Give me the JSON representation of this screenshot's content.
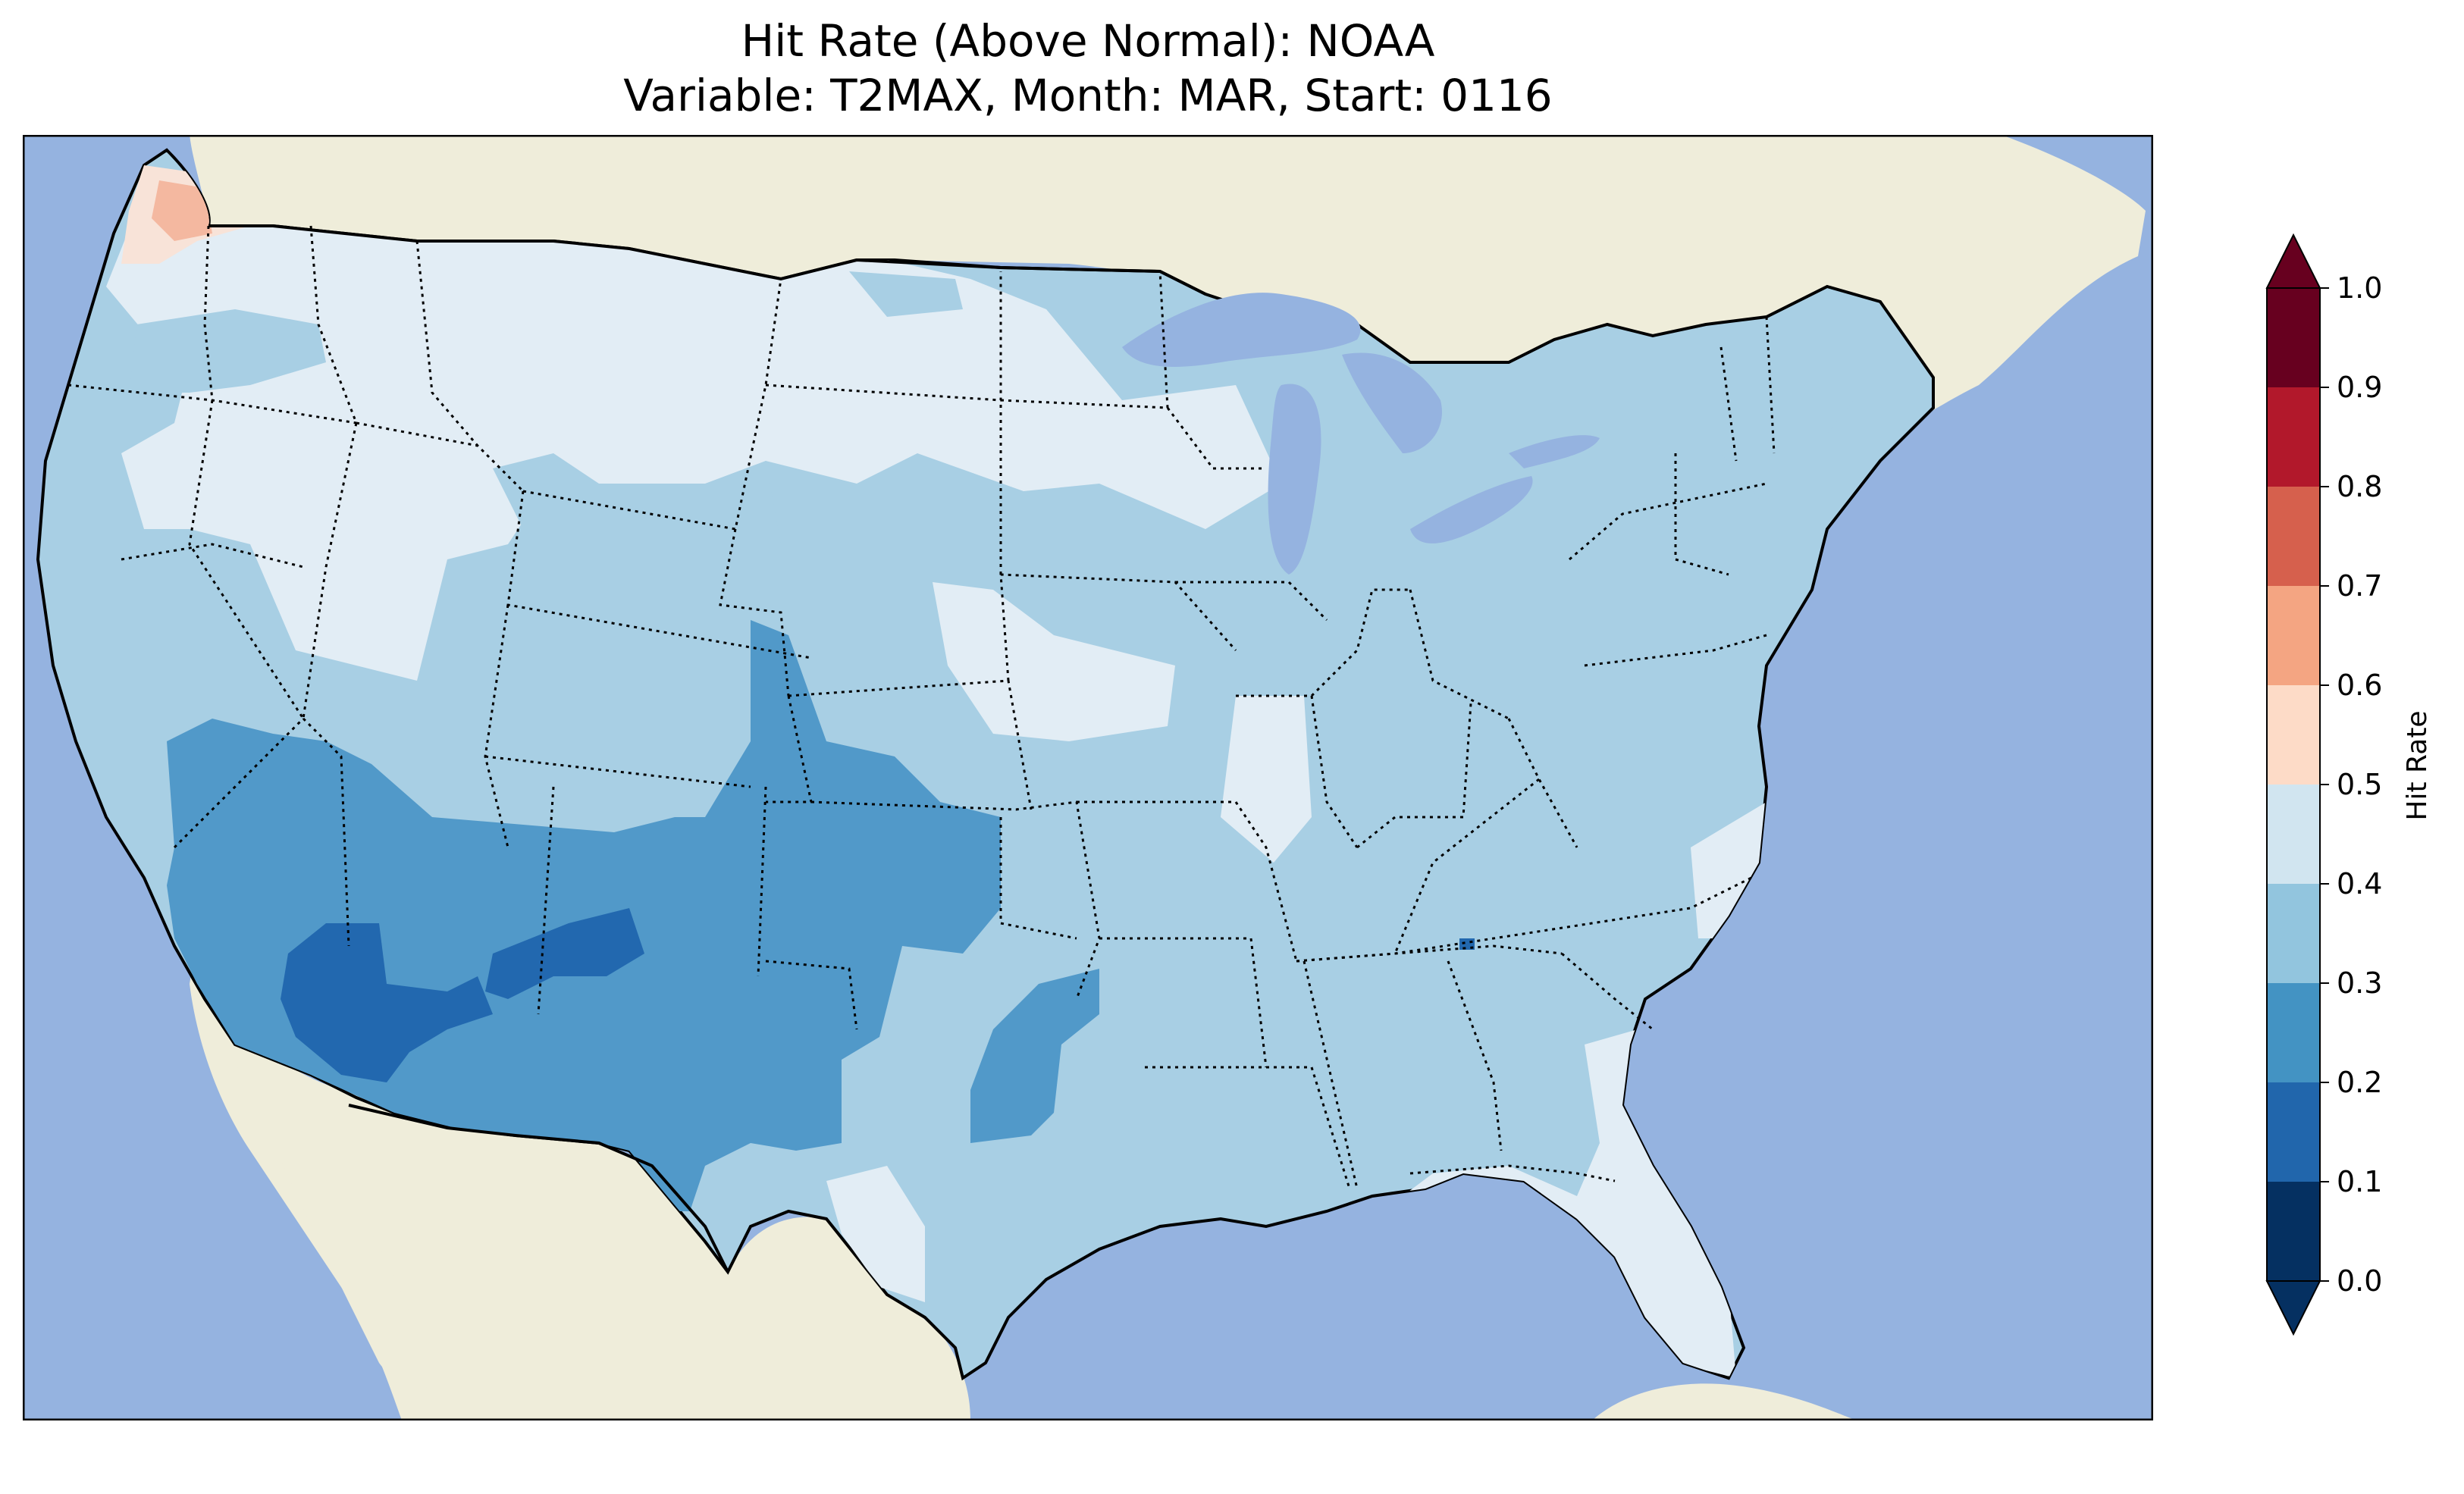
{
  "figure": {
    "title_line1": "Hit Rate (Above Normal): NOAA",
    "title_line2": "Variable: T2MAX, Month: MAR, Start: 0116"
  },
  "colors": {
    "ocean": "#95b3e0",
    "land": "#efedda",
    "lakes": "#95b3e0",
    "borders": "#000000"
  },
  "colorbar": {
    "label": "Hit Rate",
    "ticks": [
      "0.0",
      "0.1",
      "0.2",
      "0.3",
      "0.4",
      "0.5",
      "0.6",
      "0.7",
      "0.8",
      "0.9",
      "1.0"
    ],
    "colors": [
      "#053061",
      "#2166ac",
      "#4393c3",
      "#92c5de",
      "#d1e5f0",
      "#f7f7f7",
      "#fddbc7",
      "#f4a582",
      "#d6604d",
      "#b2182b",
      "#67001f"
    ],
    "under_color": "#053061",
    "over_color": "#67001f"
  },
  "chart_data": {
    "type": "heatmap",
    "title": "Hit Rate (Above Normal): NOAA\nVariable: T2MAX, Month: MAR, Start: 0116",
    "variable": "T2MAX",
    "month": "MAR",
    "start": "0116",
    "colorbar_label": "Hit Rate",
    "levels": [
      0.0,
      0.1,
      0.2,
      0.3,
      0.4,
      0.5,
      0.6,
      0.7,
      0.8,
      0.9,
      1.0
    ],
    "colorbar_ticks": [
      "0.0",
      "0.1",
      "0.2",
      "0.3",
      "0.4",
      "0.5",
      "0.6",
      "0.7",
      "0.8",
      "0.9",
      "1.0"
    ],
    "regions": [
      {
        "region": "Pacific Northwest coast (western WA)",
        "bin": [
          0.5,
          0.6
        ]
      },
      {
        "region": "Northern Rockies / northern Plains / Upper Midwest",
        "bin": [
          0.4,
          0.5
        ]
      },
      {
        "region": "Great Basin / central Plains / Midwest / Northeast / Southeast",
        "bin": [
          0.3,
          0.4
        ]
      },
      {
        "region": "Southern California / Four Corners / Texas / Oklahoma",
        "bin": [
          0.2,
          0.3
        ]
      },
      {
        "region": "Southern Arizona / New Mexico",
        "bin": [
          0.1,
          0.2
        ]
      },
      {
        "region": "Florida / Gulf coast / Carolinas coast",
        "bin": [
          0.4,
          0.5
        ]
      }
    ]
  }
}
